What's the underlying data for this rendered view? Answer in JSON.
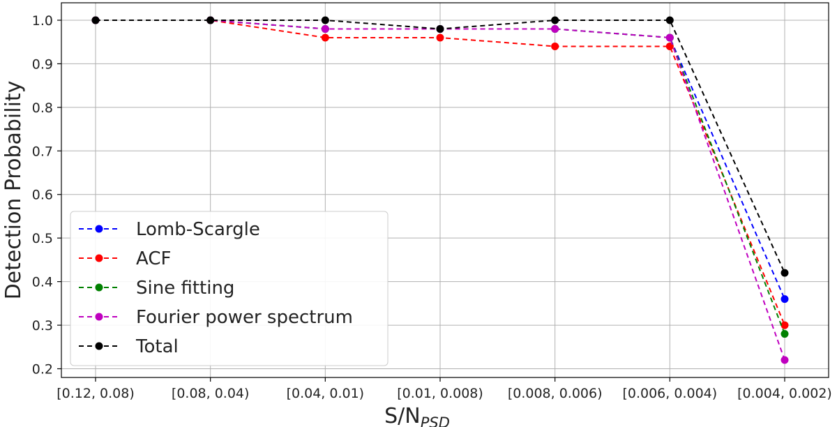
{
  "chart_data": {
    "type": "line",
    "title": "",
    "xlabel": "S/N",
    "xlabel_subscript": "PSD",
    "ylabel": "Detection Probability",
    "categories": [
      "[0.12, 0.08)",
      "[0.08, 0.04)",
      "[0.04, 0.01)",
      "[0.01, 0.008)",
      "[0.008, 0.006)",
      "[0.006, 0.004)",
      "[0.004, 0.002)"
    ],
    "ylim": [
      0.18,
      1.04
    ],
    "yticks": [
      "0.2",
      "0.3",
      "0.4",
      "0.5",
      "0.6",
      "0.7",
      "0.8",
      "0.9",
      "1.0"
    ],
    "grid": true,
    "legend_position": "lower-left",
    "series": [
      {
        "name": "Lomb-Scargle",
        "color": "#0000ff",
        "values": [
          1.0,
          1.0,
          0.98,
          0.98,
          0.98,
          0.96,
          0.36
        ]
      },
      {
        "name": "ACF",
        "color": "#ff0000",
        "values": [
          1.0,
          1.0,
          0.96,
          0.96,
          0.94,
          0.94,
          0.3
        ]
      },
      {
        "name": "Sine fitting",
        "color": "#008000",
        "values": [
          1.0,
          1.0,
          0.98,
          0.98,
          0.98,
          0.96,
          0.28
        ]
      },
      {
        "name": "Fourier power spectrum",
        "color": "#bf00bf",
        "values": [
          1.0,
          1.0,
          0.98,
          0.98,
          0.98,
          0.96,
          0.22
        ]
      },
      {
        "name": "Total",
        "color": "#000000",
        "values": [
          1.0,
          1.0,
          1.0,
          0.98,
          1.0,
          1.0,
          0.42
        ]
      }
    ]
  }
}
